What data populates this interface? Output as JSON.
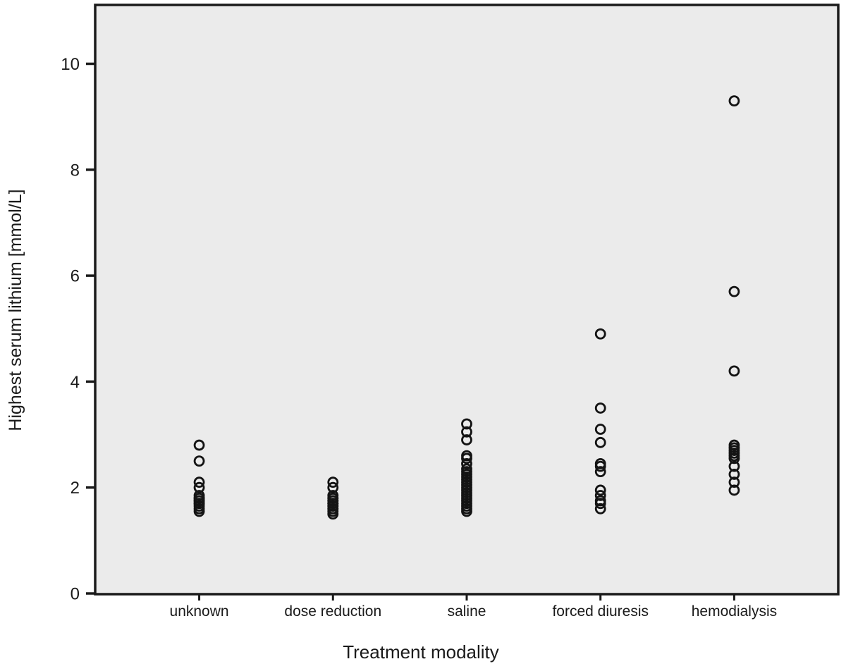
{
  "chart_data": {
    "type": "scatter",
    "subtype": "strip-plot-open-circles",
    "title": "",
    "xlabel": "Treatment modality",
    "ylabel": "Highest serum lithium [mmol/L]",
    "categories": [
      "unknown",
      "dose reduction",
      "saline",
      "forced diuresis",
      "hemodialysis"
    ],
    "yticks": [
      0,
      2,
      4,
      6,
      8,
      10
    ],
    "ylim": [
      0,
      11.1
    ],
    "grid": false,
    "legend": "none",
    "series": [
      {
        "name": "unknown",
        "values": [
          2.8,
          2.5,
          2.1,
          2.0,
          1.85,
          1.8,
          1.8,
          1.75,
          1.75,
          1.7,
          1.7,
          1.65,
          1.6,
          1.55
        ]
      },
      {
        "name": "dose reduction",
        "values": [
          2.1,
          2.0,
          1.85,
          1.8,
          1.8,
          1.75,
          1.75,
          1.7,
          1.7,
          1.7,
          1.65,
          1.65,
          1.6,
          1.6,
          1.55,
          1.5
        ]
      },
      {
        "name": "saline",
        "values": [
          3.2,
          3.05,
          2.9,
          2.6,
          2.55,
          2.45,
          2.35,
          2.3,
          2.25,
          2.2,
          2.15,
          2.1,
          2.05,
          2.0,
          1.95,
          1.9,
          1.85,
          1.8,
          1.75,
          1.7,
          1.65,
          1.6,
          1.55
        ]
      },
      {
        "name": "forced diuresis",
        "values": [
          4.9,
          3.5,
          3.1,
          2.85,
          2.45,
          2.4,
          2.3,
          1.95,
          1.85,
          1.75,
          1.7,
          1.6
        ]
      },
      {
        "name": "hemodialysis",
        "values": [
          9.3,
          5.7,
          4.2,
          2.8,
          2.75,
          2.7,
          2.65,
          2.6,
          2.55,
          2.4,
          2.25,
          2.1,
          1.95
        ]
      }
    ],
    "marker": {
      "shape": "open-circle",
      "radius_px": 6.5,
      "stroke": "#141414",
      "stroke_width": 2.8
    },
    "colors": {
      "plot_bg": "#ebebeb",
      "page_bg": "#ffffff",
      "axis": "#1a1a1a"
    }
  }
}
